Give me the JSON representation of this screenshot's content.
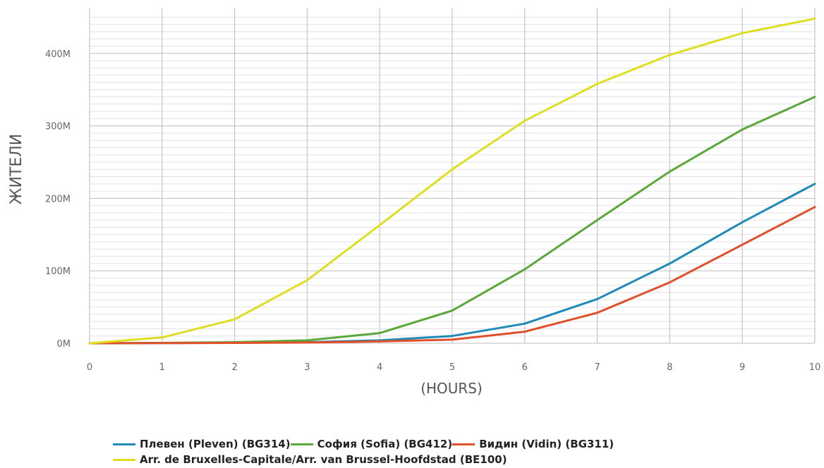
{
  "chart_data": {
    "type": "line",
    "title": "",
    "xlabel": "(HOURS)",
    "ylabel": "ЖИТЕЛИ",
    "x": [
      0,
      1,
      2,
      3,
      4,
      5,
      6,
      7,
      8,
      9,
      10
    ],
    "x_ticks": [
      "0",
      "1",
      "2",
      "3",
      "4",
      "5",
      "6",
      "7",
      "8",
      "9",
      "10"
    ],
    "xlim": [
      0,
      10
    ],
    "ylim": [
      0,
      450
    ],
    "y_unit": "M",
    "y_ticks": [
      {
        "value": 0,
        "label": "0M"
      },
      {
        "value": 100,
        "label": "100M"
      },
      {
        "value": 200,
        "label": "200M"
      },
      {
        "value": 300,
        "label": "300M"
      },
      {
        "value": 400,
        "label": "400M"
      }
    ],
    "grid": true,
    "legend_position": "bottom",
    "series": [
      {
        "name": "Плевен (Pleven) (BG314)",
        "color": "#1f8ab8",
        "values": [
          0,
          0.3,
          0.8,
          1.5,
          4,
          10,
          27,
          61,
          110,
          167,
          220
        ]
      },
      {
        "name": "София (Sofia) (BG412)",
        "color": "#5aa83a",
        "values": [
          0,
          0.5,
          1.5,
          4,
          14,
          45,
          102,
          170,
          237,
          295,
          340
        ]
      },
      {
        "name": "Видин (Vidin) (BG311)",
        "color": "#e0502a",
        "values": [
          0,
          0.2,
          0.5,
          1,
          2.5,
          5,
          16,
          42,
          84,
          136,
          188
        ]
      },
      {
        "name": "Arr. de Bruxelles-Capitale/Arr. van Brussel-Hoofdstad (BE100)",
        "color": "#dede22",
        "values": [
          0,
          8,
          33,
          87,
          163,
          240,
          307,
          358,
          398,
          428,
          448
        ]
      }
    ]
  }
}
